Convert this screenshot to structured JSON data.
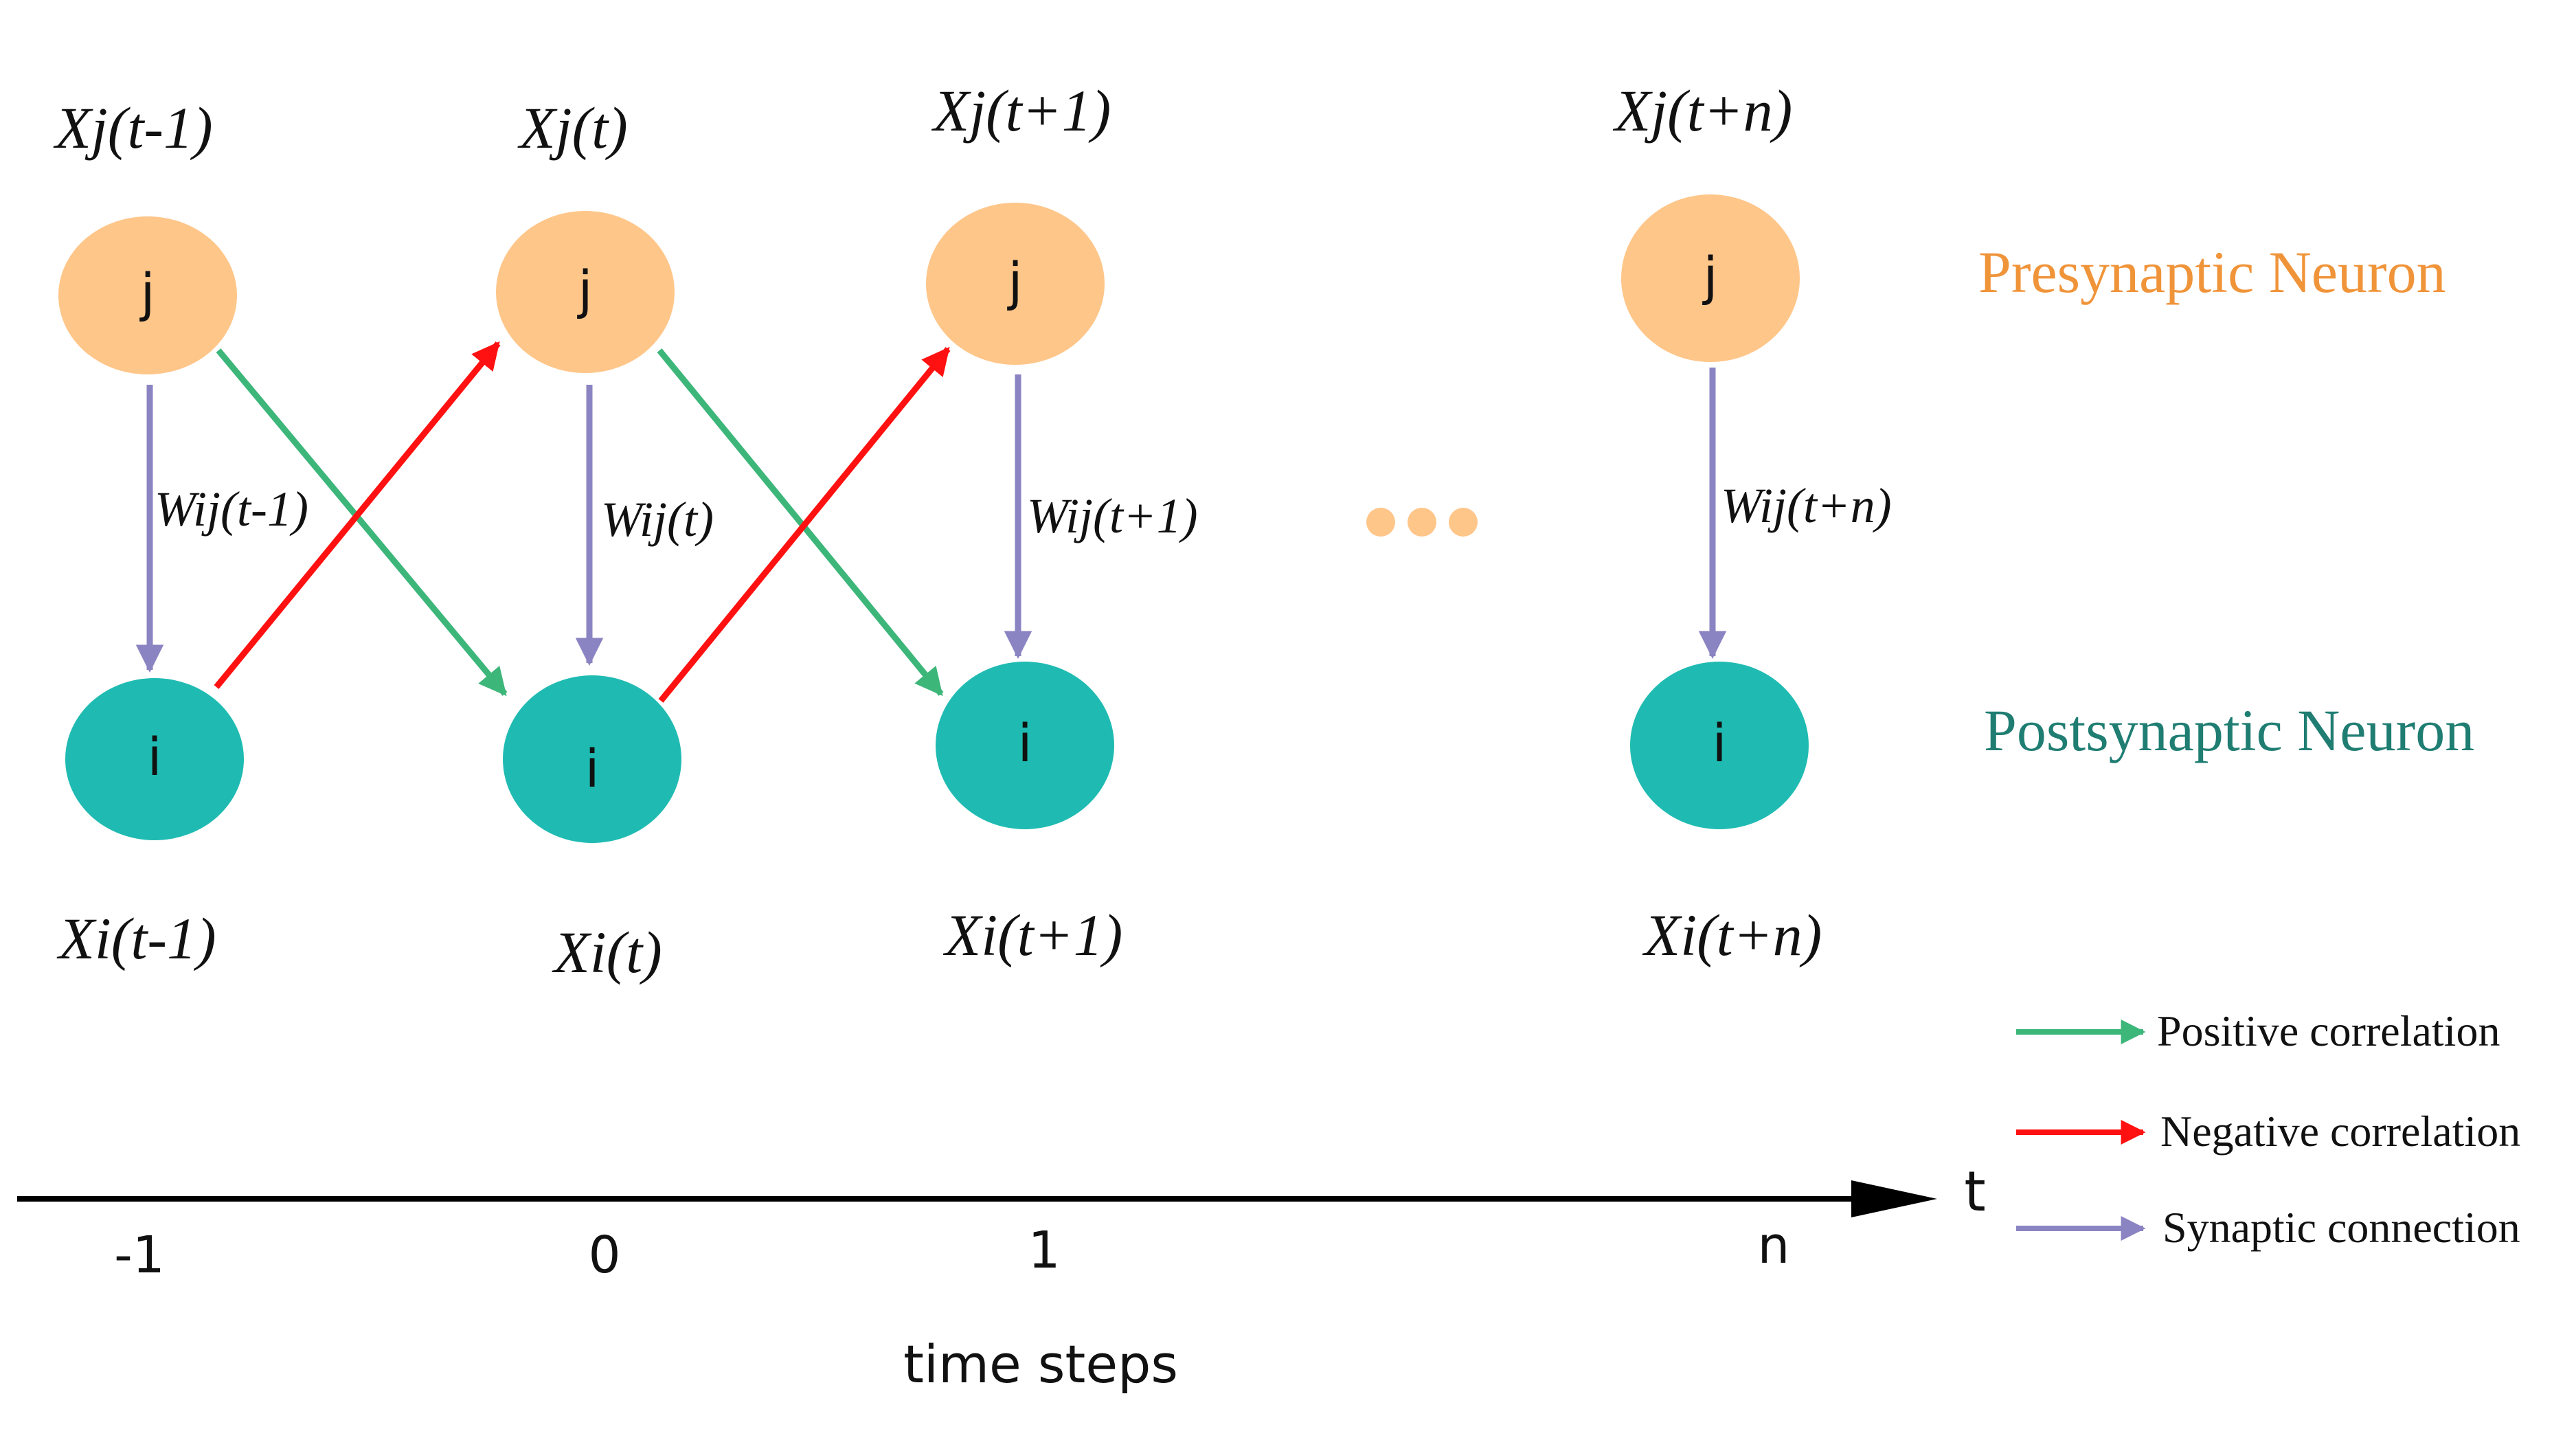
{
  "colors": {
    "presynaptic": "#FFC68A",
    "postsynaptic": "#1FBBB2",
    "positive": "#3DB67A",
    "negative": "#FF1111",
    "synaptic": "#8A84C2",
    "presynaptic_text": "#F0943A",
    "postsynaptic_text": "#1F7D72",
    "axis": "#000000"
  },
  "columns": [
    {
      "x_label": "Xj(t-1)",
      "i_label": "Xi(t-1)",
      "w_label": "Wij(t-1)",
      "pre_node": "j",
      "post_node": "i",
      "tick": "-1"
    },
    {
      "x_label": "Xj(t)",
      "i_label": "Xi(t)",
      "w_label": "Wij(t)",
      "pre_node": "j",
      "post_node": "i",
      "tick": "0"
    },
    {
      "x_label": "Xj(t+1)",
      "i_label": "Xi(t+1)",
      "w_label": "Wij(t+1)",
      "pre_node": "j",
      "post_node": "i",
      "tick": "1"
    },
    {
      "x_label": "Xj(t+n)",
      "i_label": "Xi(t+n)",
      "w_label": "Wij(t+n)",
      "pre_node": "j",
      "post_node": "i",
      "tick": "n"
    }
  ],
  "row_labels": {
    "presynaptic": "Presynaptic Neuron",
    "postsynaptic": "Postsynaptic Neuron"
  },
  "axis": {
    "symbol": "t",
    "title": "time steps"
  },
  "legend": [
    {
      "label": "Positive correlation",
      "color": "#3DB67A"
    },
    {
      "label": "Negative correlation",
      "color": "#FF1111"
    },
    {
      "label": "Synaptic connection",
      "color": "#8A84C2"
    }
  ],
  "edges": [
    {
      "type": "synaptic",
      "from": "pre-0",
      "to": "post-0"
    },
    {
      "type": "synaptic",
      "from": "pre-1",
      "to": "post-1"
    },
    {
      "type": "synaptic",
      "from": "pre-2",
      "to": "post-2"
    },
    {
      "type": "synaptic",
      "from": "pre-3",
      "to": "post-3"
    },
    {
      "type": "positive",
      "from": "pre-0",
      "to": "post-1"
    },
    {
      "type": "positive",
      "from": "pre-1",
      "to": "post-2"
    },
    {
      "type": "negative",
      "from": "post-0",
      "to": "pre-1"
    },
    {
      "type": "negative",
      "from": "post-1",
      "to": "pre-2"
    }
  ],
  "ellipsis_color": "#FFC68A"
}
